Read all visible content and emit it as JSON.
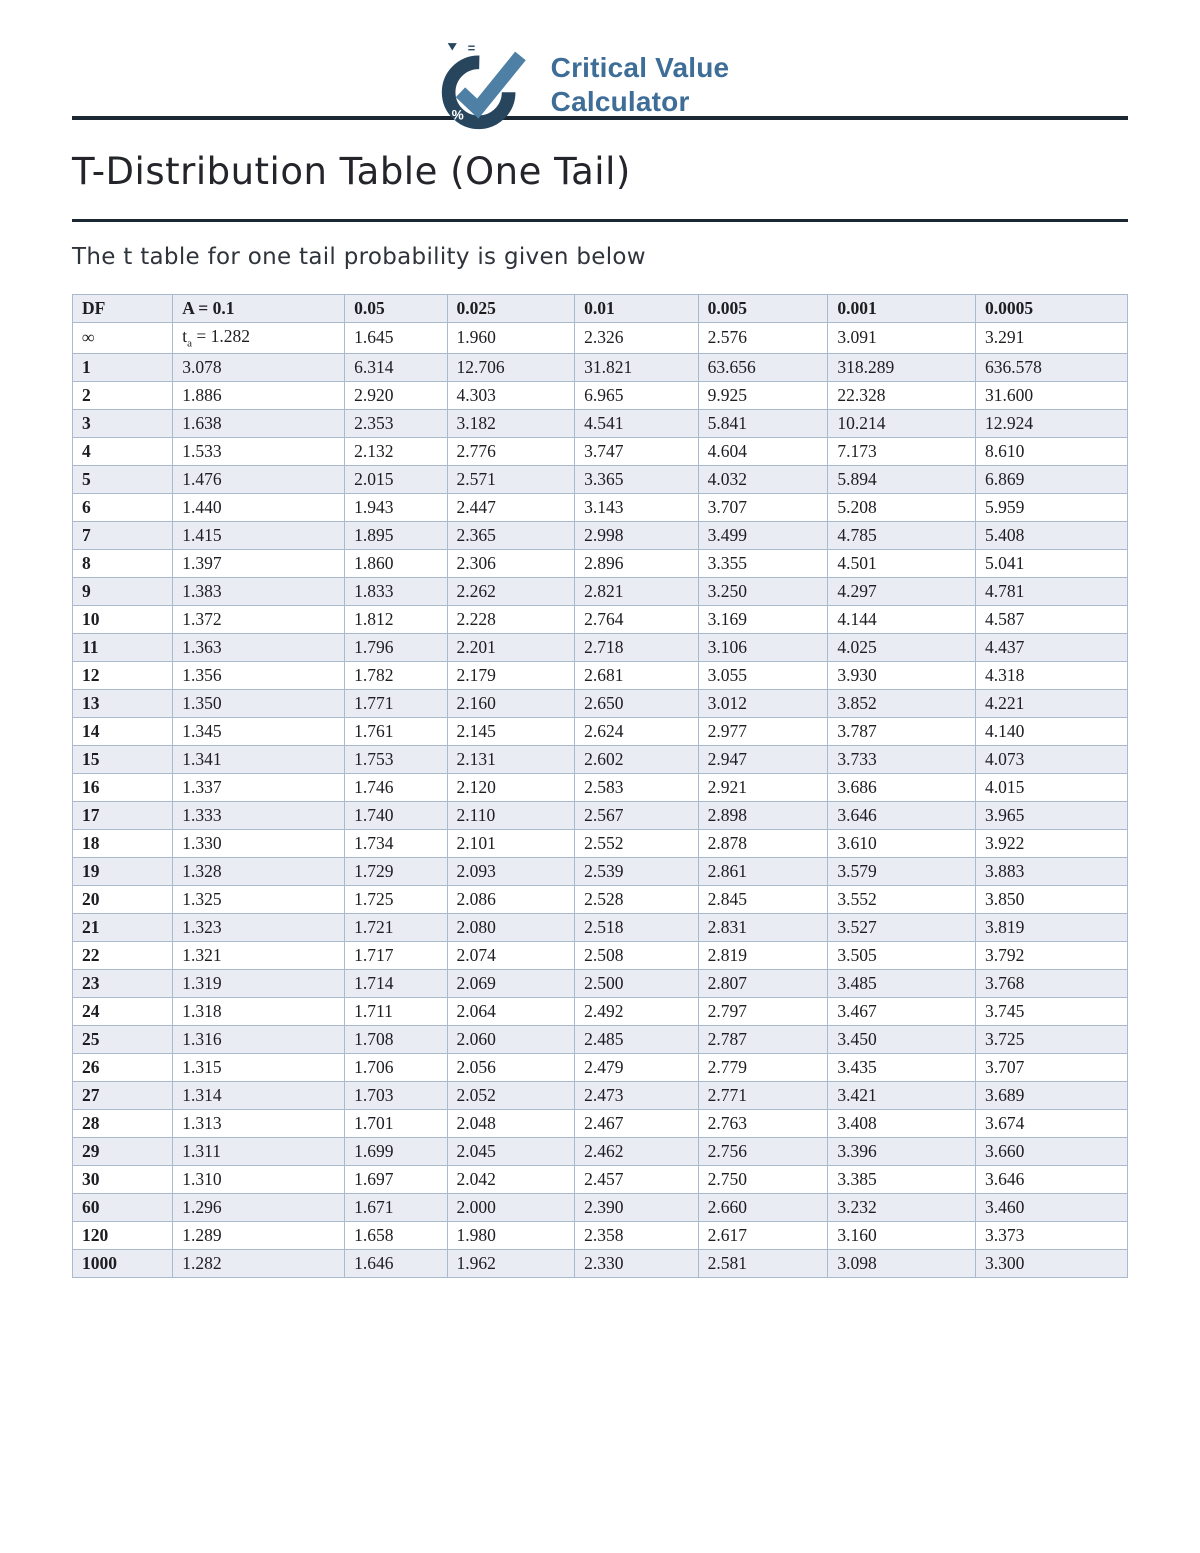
{
  "logo": {
    "title_line1": "Critical Value",
    "title_line2": "Calculator",
    "icon": {
      "equals_glyph": "=",
      "percent_glyph": "%"
    }
  },
  "page": {
    "title": "T-Distribution Table (One Tail)",
    "subtitle": "The t table for one tail probability is given below"
  },
  "colors": {
    "rule": "#1b2733",
    "row_shade": "#e9ecf2",
    "table_border": "#a9b9ce",
    "logo_text": "#3e6d98",
    "logo_ring": "#27465e",
    "logo_check": "#4e7fa5"
  },
  "table": {
    "headers": [
      "DF",
      "A = 0.1",
      "0.05",
      "0.025",
      "0.01",
      "0.005",
      "0.001",
      "0.0005"
    ],
    "infinity_row": {
      "df": "∞",
      "t_prefix": "t",
      "t_sub": "a",
      "t_suffix": " = 1.282",
      "values": [
        "1.645",
        "1.960",
        "2.326",
        "2.576",
        "3.091",
        "3.291"
      ]
    },
    "rows": [
      [
        "1",
        "3.078",
        "6.314",
        "12.706",
        "31.821",
        "63.656",
        "318.289",
        "636.578"
      ],
      [
        "2",
        "1.886",
        "2.920",
        "4.303",
        "6.965",
        "9.925",
        "22.328",
        "31.600"
      ],
      [
        "3",
        "1.638",
        "2.353",
        "3.182",
        "4.541",
        "5.841",
        "10.214",
        "12.924"
      ],
      [
        "4",
        "1.533",
        "2.132",
        "2.776",
        "3.747",
        "4.604",
        "7.173",
        "8.610"
      ],
      [
        "5",
        "1.476",
        "2.015",
        "2.571",
        "3.365",
        "4.032",
        "5.894",
        "6.869"
      ],
      [
        "6",
        "1.440",
        "1.943",
        "2.447",
        "3.143",
        "3.707",
        "5.208",
        "5.959"
      ],
      [
        "7",
        "1.415",
        "1.895",
        "2.365",
        "2.998",
        "3.499",
        "4.785",
        "5.408"
      ],
      [
        "8",
        "1.397",
        "1.860",
        "2.306",
        "2.896",
        "3.355",
        "4.501",
        "5.041"
      ],
      [
        "9",
        "1.383",
        "1.833",
        "2.262",
        "2.821",
        "3.250",
        "4.297",
        "4.781"
      ],
      [
        "10",
        "1.372",
        "1.812",
        "2.228",
        "2.764",
        "3.169",
        "4.144",
        "4.587"
      ],
      [
        "11",
        "1.363",
        "1.796",
        "2.201",
        "2.718",
        "3.106",
        "4.025",
        "4.437"
      ],
      [
        "12",
        "1.356",
        "1.782",
        "2.179",
        "2.681",
        "3.055",
        "3.930",
        "4.318"
      ],
      [
        "13",
        "1.350",
        "1.771",
        "2.160",
        "2.650",
        "3.012",
        "3.852",
        "4.221"
      ],
      [
        "14",
        "1.345",
        "1.761",
        "2.145",
        "2.624",
        "2.977",
        "3.787",
        "4.140"
      ],
      [
        "15",
        "1.341",
        "1.753",
        "2.131",
        "2.602",
        "2.947",
        "3.733",
        "4.073"
      ],
      [
        "16",
        "1.337",
        "1.746",
        "2.120",
        "2.583",
        "2.921",
        "3.686",
        "4.015"
      ],
      [
        "17",
        "1.333",
        "1.740",
        "2.110",
        "2.567",
        "2.898",
        "3.646",
        "3.965"
      ],
      [
        "18",
        "1.330",
        "1.734",
        "2.101",
        "2.552",
        "2.878",
        "3.610",
        "3.922"
      ],
      [
        "19",
        "1.328",
        "1.729",
        "2.093",
        "2.539",
        "2.861",
        "3.579",
        "3.883"
      ],
      [
        "20",
        "1.325",
        "1.725",
        "2.086",
        "2.528",
        "2.845",
        "3.552",
        "3.850"
      ],
      [
        "21",
        "1.323",
        "1.721",
        "2.080",
        "2.518",
        "2.831",
        "3.527",
        "3.819"
      ],
      [
        "22",
        "1.321",
        "1.717",
        "2.074",
        "2.508",
        "2.819",
        "3.505",
        "3.792"
      ],
      [
        "23",
        "1.319",
        "1.714",
        "2.069",
        "2.500",
        "2.807",
        "3.485",
        "3.768"
      ],
      [
        "24",
        "1.318",
        "1.711",
        "2.064",
        "2.492",
        "2.797",
        "3.467",
        "3.745"
      ],
      [
        "25",
        "1.316",
        "1.708",
        "2.060",
        "2.485",
        "2.787",
        "3.450",
        "3.725"
      ],
      [
        "26",
        "1.315",
        "1.706",
        "2.056",
        "2.479",
        "2.779",
        "3.435",
        "3.707"
      ],
      [
        "27",
        "1.314",
        "1.703",
        "2.052",
        "2.473",
        "2.771",
        "3.421",
        "3.689"
      ],
      [
        "28",
        "1.313",
        "1.701",
        "2.048",
        "2.467",
        "2.763",
        "3.408",
        "3.674"
      ],
      [
        "29",
        "1.311",
        "1.699",
        "2.045",
        "2.462",
        "2.756",
        "3.396",
        "3.660"
      ],
      [
        "30",
        "1.310",
        "1.697",
        "2.042",
        "2.457",
        "2.750",
        "3.385",
        "3.646"
      ],
      [
        "60",
        "1.296",
        "1.671",
        "2.000",
        "2.390",
        "2.660",
        "3.232",
        "3.460"
      ],
      [
        "120",
        "1.289",
        "1.658",
        "1.980",
        "2.358",
        "2.617",
        "3.160",
        "3.373"
      ],
      [
        "1000",
        "1.282",
        "1.646",
        "1.962",
        "2.330",
        "2.581",
        "3.098",
        "3.300"
      ]
    ]
  }
}
